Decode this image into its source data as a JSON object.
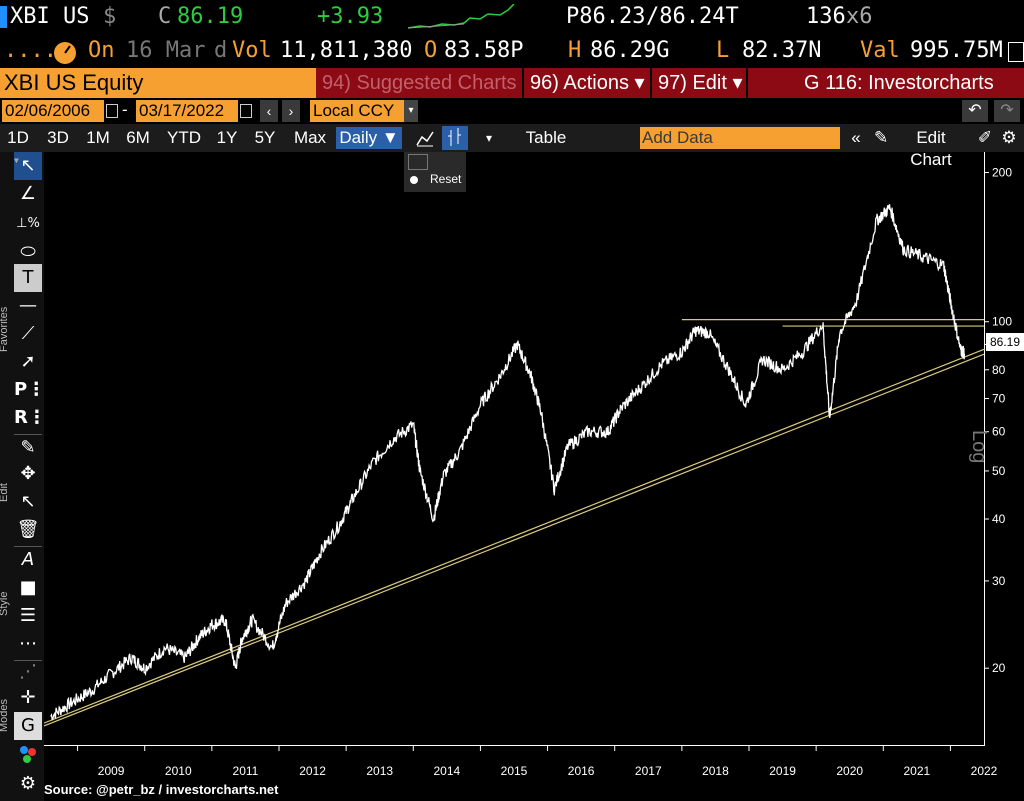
{
  "ticker": {
    "symbol": "XBI US",
    "dollar": "$",
    "c_label": "C",
    "last": "86.19",
    "change": "+3.93",
    "bidask_p": "P86.23",
    "bidask_t": "/86.24T",
    "size": "136",
    "size_x": "x6"
  },
  "stats": {
    "dots": "....",
    "on_label": "On",
    "date": "16 Mar",
    "d_label": "d",
    "vol_label": "Vol",
    "volume": "11,811,380",
    "open_label": "O",
    "open": "83.58P",
    "high_label": "H",
    "high": "86.29G",
    "low_label": "L",
    "low": "82.37N",
    "val_label": "Val",
    "value": "995.75M"
  },
  "toolbar": {
    "security": "XBI US Equity",
    "suggested": "94) Suggested Charts",
    "actions": "96) Actions ▾",
    "edit": "97) Edit ▾",
    "function": "G 116: Investorcharts"
  },
  "range": {
    "start": "02/06/2006",
    "dash": "-",
    "end": "03/17/2022",
    "currency": "Local CCY"
  },
  "periods": [
    "1D",
    "3D",
    "1M",
    "6M",
    "YTD",
    "1Y",
    "5Y",
    "Max"
  ],
  "frequency": "Daily ▼",
  "table_label": "Table",
  "add_data_placeholder": "Add Data",
  "edit_chart": "Edit Chart",
  "reset_label": "Reset",
  "side_labels": {
    "favorites": "Favorites",
    "edit": "Edit",
    "style": "Style",
    "modes": "Modes"
  },
  "colors": {
    "accent_orange": "#f7a032",
    "bar_red": "#8b0a14",
    "price_green": "#2ecc40",
    "trendline": "#d8c97a"
  },
  "chart_data": {
    "type": "line",
    "scale": "log",
    "scale_label": "Log",
    "last_price_label": "86.19",
    "y_ticks": [
      20,
      30,
      40,
      50,
      60,
      70,
      80,
      90,
      100,
      200
    ],
    "ylim": [
      14,
      220
    ],
    "x_ticks": [
      "2009",
      "2010",
      "2011",
      "2012",
      "2013",
      "2014",
      "2015",
      "2016",
      "2017",
      "2018",
      "2019",
      "2020",
      "2021",
      "2022"
    ],
    "series": [
      {
        "x": [
          2008.6,
          2008.9,
          2009.2,
          2009.5,
          2009.8,
          2010.0,
          2010.3,
          2010.6,
          2010.8,
          2011.0,
          2011.2,
          2011.35,
          2011.45,
          2011.6,
          2011.9,
          2012.1,
          2012.4,
          2012.6,
          2012.9,
          2013.1,
          2013.4,
          2013.7,
          2014.0,
          2014.1,
          2014.3,
          2014.45,
          2014.7,
          2015.0,
          2015.3,
          2015.55,
          2015.75,
          2015.9,
          2016.1,
          2016.3,
          2016.6,
          2016.9,
          2017.1,
          2017.4,
          2017.7,
          2018.0,
          2018.2,
          2018.4,
          2018.7,
          2018.95,
          2019.2,
          2019.5,
          2019.8,
          2020.1,
          2020.2,
          2020.35,
          2020.6,
          2020.9,
          2021.1,
          2021.3,
          2021.6,
          2021.9,
          2022.0,
          2022.15,
          2022.21
        ],
        "values": [
          16,
          17,
          18,
          19.5,
          21,
          20,
          22,
          21,
          23,
          24.5,
          25,
          20,
          23,
          25,
          22,
          27,
          30,
          34,
          39,
          44,
          52,
          58,
          62,
          50,
          40,
          49,
          55,
          68,
          78,
          90,
          78,
          66,
          46,
          56,
          60,
          60,
          67,
          74,
          82,
          87,
          96,
          95,
          80,
          68,
          84,
          80,
          87,
          99,
          64,
          95,
          110,
          160,
          170,
          140,
          135,
          130,
          110,
          88,
          86.19
        ]
      }
    ],
    "annotations": [
      {
        "type": "horizontal-line",
        "value": 101,
        "from": 2018.0,
        "to": 2022.5
      },
      {
        "type": "horizontal-line",
        "value": 98,
        "from": 2019.5,
        "to": 2022.5
      },
      {
        "type": "trendline",
        "from": [
          2008.5,
          15.5
        ],
        "to": [
          2022.5,
          88
        ]
      },
      {
        "type": "trendline",
        "from": [
          2008.5,
          15.3
        ],
        "to": [
          2022.5,
          86
        ]
      }
    ]
  },
  "source": "Source: @petr_bz / investorcharts.net"
}
